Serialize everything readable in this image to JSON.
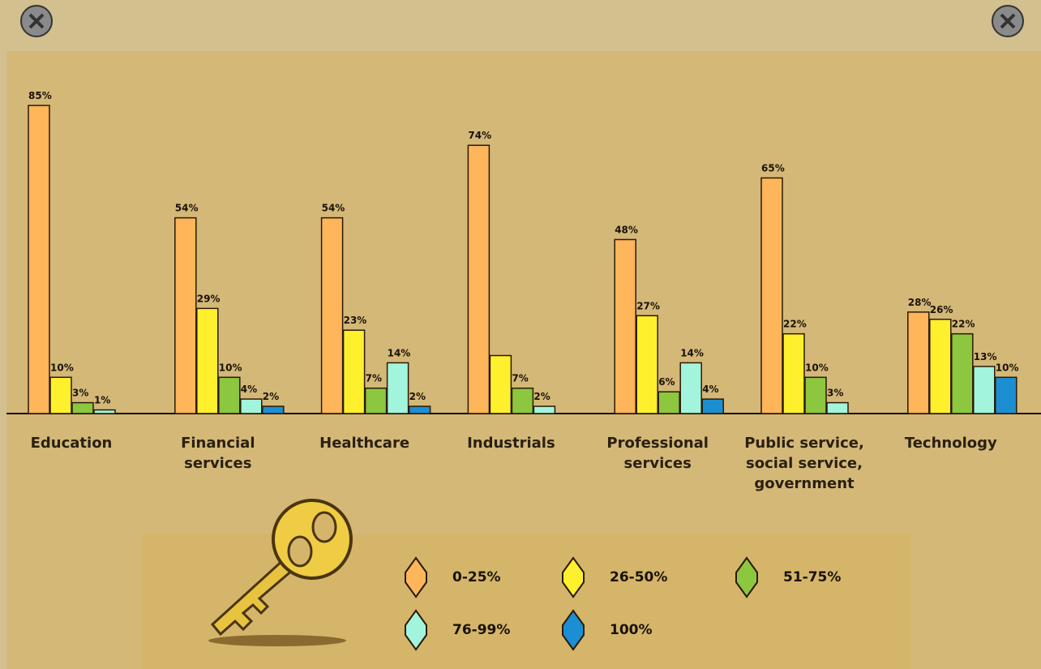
{
  "chart_data": {
    "type": "bar",
    "categories": [
      "Education",
      "Financial services",
      "Healthcare",
      "Industrials",
      "Professional services",
      "Public service, social service, government",
      "Technology"
    ],
    "series": [
      {
        "name": "0-25%",
        "color": "#ffb55a",
        "values": [
          85,
          54,
          54,
          74,
          48,
          65,
          28
        ],
        "value_labels": [
          "85%",
          "54%",
          "54%",
          "74%",
          "48%",
          "65%",
          "28%"
        ]
      },
      {
        "name": "26-50%",
        "color": "#fff02e",
        "values": [
          10,
          29,
          23,
          16,
          27,
          22,
          26
        ],
        "value_labels": [
          "10%",
          "29%",
          "23%",
          null,
          "27%",
          "22%",
          "26%"
        ]
      },
      {
        "name": "51-75%",
        "color": "#8dc63f",
        "values": [
          3,
          10,
          7,
          7,
          6,
          10,
          22
        ],
        "value_labels": [
          "3%",
          "10%",
          "7%",
          "7%",
          "6%",
          "10%",
          "22%"
        ]
      },
      {
        "name": "76-99%",
        "color": "#a2f5dc",
        "values": [
          1,
          4,
          14,
          2,
          14,
          3,
          13
        ],
        "value_labels": [
          "1%",
          "4%",
          "14%",
          "2%",
          "14%",
          "3%",
          "13%"
        ]
      },
      {
        "name": "100%",
        "color": "#1b8fd2",
        "values": [
          null,
          2,
          2,
          null,
          4,
          null,
          10
        ],
        "value_labels": [
          null,
          "2%",
          "2%",
          null,
          "4%",
          null,
          "10%"
        ]
      }
    ],
    "ylim": [
      0,
      100
    ]
  }
}
